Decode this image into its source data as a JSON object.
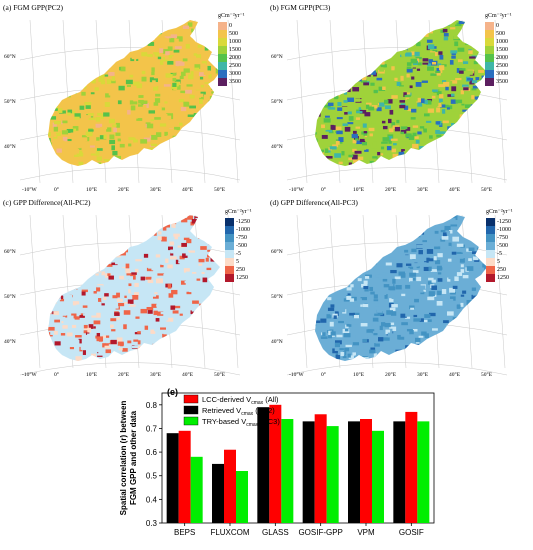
{
  "panels": [
    {
      "title": "(a) FGM GPP(PC2)",
      "style": "gpp",
      "legend_title": "gCm⁻²yr⁻¹",
      "legend": [
        {
          "label": "0",
          "color": "#f5b38a"
        },
        {
          "label": "500",
          "color": "#f3c44a"
        },
        {
          "label": "1000",
          "color": "#d9d93a"
        },
        {
          "label": "1500",
          "color": "#9fd23a"
        },
        {
          "label": "2000",
          "color": "#55c24a"
        },
        {
          "label": "2500",
          "color": "#3fb6a8"
        },
        {
          "label": "3000",
          "color": "#2a6fbf"
        },
        {
          "label": "3500",
          "color": "#5c1f60"
        }
      ]
    },
    {
      "title": "(b) FGM GPP(PC3)",
      "style": "gpp2",
      "legend_title": "gCm⁻²yr⁻¹",
      "legend": [
        {
          "label": "0",
          "color": "#f5b38a"
        },
        {
          "label": "500",
          "color": "#f3c44a"
        },
        {
          "label": "1000",
          "color": "#d9d93a"
        },
        {
          "label": "1500",
          "color": "#9fd23a"
        },
        {
          "label": "2000",
          "color": "#55c24a"
        },
        {
          "label": "2500",
          "color": "#3fb6a8"
        },
        {
          "label": "3000",
          "color": "#2a6fbf"
        },
        {
          "label": "3500",
          "color": "#5c1f60"
        }
      ]
    },
    {
      "title": "(c) GPP Difference(All-PC2)",
      "style": "diffc",
      "legend_title": "gCm⁻²yr⁻¹",
      "legend": [
        {
          "label": "-1250",
          "color": "#08306b"
        },
        {
          "label": "-1000",
          "color": "#2166ac"
        },
        {
          "label": "-750",
          "color": "#4393c3"
        },
        {
          "label": "-500",
          "color": "#6baed6"
        },
        {
          "label": "-5",
          "color": "#c6e6f5"
        },
        {
          "label": "5",
          "color": "#fddbc7"
        },
        {
          "label": "250",
          "color": "#ef6548"
        },
        {
          "label": "1250",
          "color": "#b2182b"
        }
      ]
    },
    {
      "title": "(d) GPP Difference(All-PC3)",
      "style": "diffd",
      "legend_title": "gCm⁻²yr⁻¹",
      "legend": [
        {
          "label": "-1250",
          "color": "#08306b"
        },
        {
          "label": "-1000",
          "color": "#2166ac"
        },
        {
          "label": "-750",
          "color": "#4393c3"
        },
        {
          "label": "-500",
          "color": "#6baed6"
        },
        {
          "label": "-5",
          "color": "#c6e6f5"
        },
        {
          "label": "5",
          "color": "#fddbc7"
        },
        {
          "label": "250",
          "color": "#ef6548"
        },
        {
          "label": "1250",
          "color": "#b2182b"
        }
      ]
    }
  ],
  "map_labels": {
    "lat": [
      "60°N",
      "50°N",
      "40°N"
    ],
    "lon": [
      "-10°W",
      "0°",
      "10°E",
      "20°E",
      "30°E",
      "40°E",
      "50°E"
    ]
  },
  "chart_data": {
    "type": "bar",
    "panel_label": "(e)",
    "ylabel_lines": [
      "Spatial correlation (r) between",
      "FGM GPP and other data"
    ],
    "categories": [
      "BEPS",
      "FLUXCOM",
      "GLASS",
      "GOSIF-GPP",
      "VPM",
      "GOSIF"
    ],
    "ylim": [
      0.3,
      0.85
    ],
    "yticks": [
      "0.3",
      "0.4",
      "0.5",
      "0.6",
      "0.7",
      "0.8"
    ],
    "series": [
      {
        "name": "Retrieved Vₐₘₐₓ (PC2)",
        "legend_main": "Retrieved V",
        "legend_sub": "cmax",
        "legend_tail": " (PC2)",
        "color": "#000000",
        "values": [
          0.68,
          0.55,
          0.79,
          0.73,
          0.73,
          0.73
        ]
      },
      {
        "name": "LCC-derived Vₐₘₐₓ (All)",
        "legend_main": "LCC-derived V",
        "legend_sub": "cmax",
        "legend_tail": " (All)",
        "color": "#ff0000",
        "values": [
          0.69,
          0.61,
          0.8,
          0.76,
          0.74,
          0.77
        ]
      },
      {
        "name": "TRY-based Vₐₘₐₓ (PC3)",
        "legend_main": "TRY-based V",
        "legend_sub": "cmax",
        "legend_tail": " (PC3)",
        "color": "#00ee00",
        "values": [
          0.58,
          0.52,
          0.74,
          0.71,
          0.69,
          0.73
        ]
      }
    ],
    "legend_order": [
      1,
      0,
      2
    ]
  }
}
